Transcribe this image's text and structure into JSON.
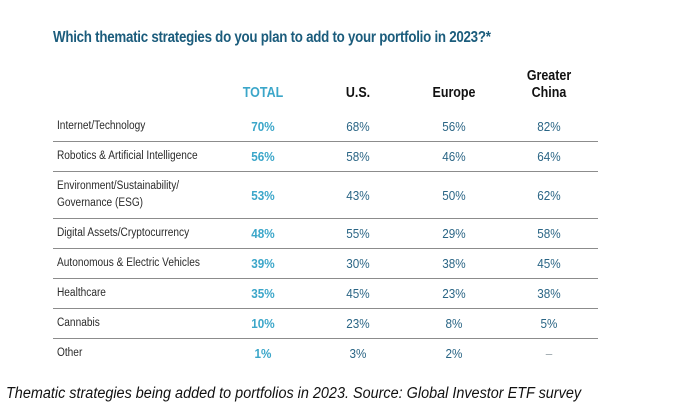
{
  "colors": {
    "title": "#1b5c7c",
    "total": "#3ba6c9",
    "value": "#2a6585",
    "header": "#111111",
    "dash": "#9aa5ab"
  },
  "title": "Which thematic strategies do you plan to add to your portfolio in 2023?*",
  "columns": {
    "total": "TOTAL",
    "us": "U.S.",
    "europe": "Europe",
    "china_line1": "Greater",
    "china_line2": "China"
  },
  "rows": [
    {
      "label": "Internet/Technology",
      "label2": "",
      "total": "70%",
      "us": "68%",
      "europe": "56%",
      "china": "82%"
    },
    {
      "label": "Robotics & Artificial Intelligence",
      "label2": "",
      "total": "56%",
      "us": "58%",
      "europe": "46%",
      "china": "64%"
    },
    {
      "label": "Environment/Sustainability/",
      "label2": "Governance (ESG)",
      "total": "53%",
      "us": "43%",
      "europe": "50%",
      "china": "62%"
    },
    {
      "label": "Digital Assets/Cryptocurrency",
      "label2": "",
      "total": "48%",
      "us": "55%",
      "europe": "29%",
      "china": "58%"
    },
    {
      "label": "Autonomous & Electric Vehicles",
      "label2": "",
      "total": "39%",
      "us": "30%",
      "europe": "38%",
      "china": "45%"
    },
    {
      "label": "Healthcare",
      "label2": "",
      "total": "35%",
      "us": "45%",
      "europe": "23%",
      "china": "38%"
    },
    {
      "label": "Cannabis",
      "label2": "",
      "total": "10%",
      "us": "23%",
      "europe": "8%",
      "china": "5%"
    },
    {
      "label": "Other",
      "label2": "",
      "total": "1%",
      "us": "3%",
      "europe": "2%",
      "china": "–"
    }
  ],
  "caption": "Thematic strategies being added to portfolios in 2023. Source: Global Investor ETF survey"
}
